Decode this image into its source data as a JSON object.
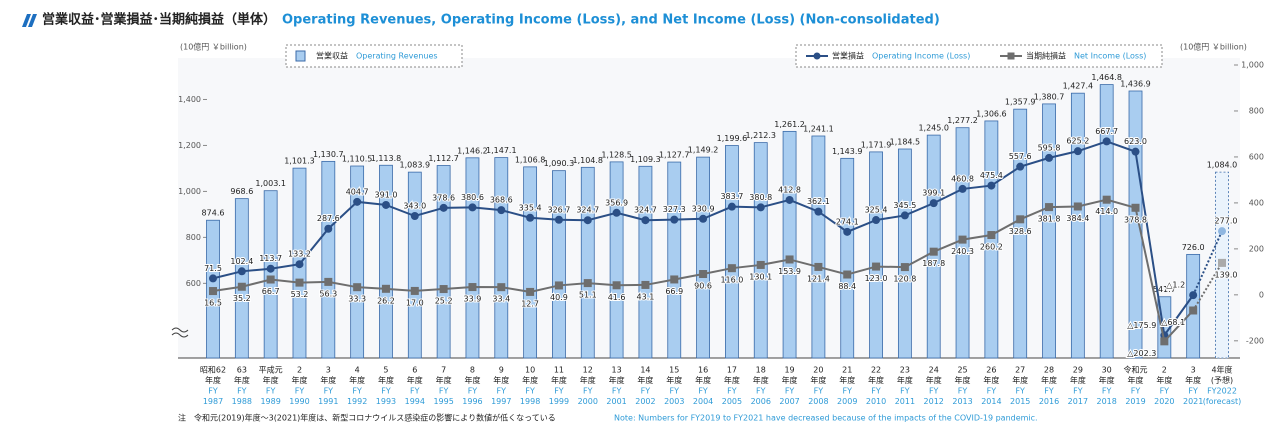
{
  "chart_data": {
    "type": "bar-line",
    "title": "営業収益･営業損益･当期純損益（単体）",
    "title_en": "Operating Revenues, Operating Income (Loss), and Net Income (Loss) (Non-consolidated)",
    "y_label": "(10億円 ￥billion)",
    "y2_label": "(10億円 ￥billion)",
    "note": "注　令和元(2019)年度～3(2021)年度は、新型コロナウイルス感染症の影響により数値が低くなっている",
    "note_en": "Note: Numbers for FY2019 to FY2021 have decreased because of the impacts of the COVID-19 pandemic.",
    "categories": [
      [
        "昭和62",
        "年度",
        "FY",
        "1987"
      ],
      [
        "63",
        "年度",
        "FY",
        "1988"
      ],
      [
        "平成元",
        "年度",
        "FY",
        "1989"
      ],
      [
        "2",
        "年度",
        "FY",
        "1990"
      ],
      [
        "3",
        "年度",
        "FY",
        "1991"
      ],
      [
        "4",
        "年度",
        "FY",
        "1992"
      ],
      [
        "5",
        "年度",
        "FY",
        "1993"
      ],
      [
        "6",
        "年度",
        "FY",
        "1994"
      ],
      [
        "7",
        "年度",
        "FY",
        "1995"
      ],
      [
        "8",
        "年度",
        "FY",
        "1996"
      ],
      [
        "9",
        "年度",
        "FY",
        "1997"
      ],
      [
        "10",
        "年度",
        "FY",
        "1998"
      ],
      [
        "11",
        "年度",
        "FY",
        "1999"
      ],
      [
        "12",
        "年度",
        "FY",
        "2000"
      ],
      [
        "13",
        "年度",
        "FY",
        "2001"
      ],
      [
        "14",
        "年度",
        "FY",
        "2002"
      ],
      [
        "15",
        "年度",
        "FY",
        "2003"
      ],
      [
        "16",
        "年度",
        "FY",
        "2004"
      ],
      [
        "17",
        "年度",
        "FY",
        "2005"
      ],
      [
        "18",
        "年度",
        "FY",
        "2006"
      ],
      [
        "19",
        "年度",
        "FY",
        "2007"
      ],
      [
        "20",
        "年度",
        "FY",
        "2008"
      ],
      [
        "21",
        "年度",
        "FY",
        "2009"
      ],
      [
        "22",
        "年度",
        "FY",
        "2010"
      ],
      [
        "23",
        "年度",
        "FY",
        "2011"
      ],
      [
        "24",
        "年度",
        "FY",
        "2012"
      ],
      [
        "25",
        "年度",
        "FY",
        "2013"
      ],
      [
        "26",
        "年度",
        "FY",
        "2014"
      ],
      [
        "27",
        "年度",
        "FY",
        "2015"
      ],
      [
        "28",
        "年度",
        "FY",
        "2016"
      ],
      [
        "29",
        "年度",
        "FY",
        "2017"
      ],
      [
        "30",
        "年度",
        "FY",
        "2018"
      ],
      [
        "令和元",
        "年度",
        "FY",
        "2019"
      ],
      [
        "2",
        "年度",
        "FY",
        "2020"
      ],
      [
        "3",
        "年度",
        "FY",
        "2021"
      ],
      [
        "4年度",
        "(予想)",
        "FY2022",
        "(forecast)"
      ]
    ],
    "series": [
      {
        "name": "営業収益",
        "name_en": "Operating Revenues",
        "color": "#a9cdf0",
        "axis": "y",
        "style": "bar",
        "values": [
          874.6,
          968.6,
          1003.1,
          1101.3,
          1130.7,
          1110.5,
          1113.8,
          1083.9,
          1112.7,
          1146.2,
          1147.1,
          1106.8,
          1090.3,
          1104.8,
          1128.5,
          1109.3,
          1127.7,
          1149.2,
          1199.6,
          1212.3,
          1261.2,
          1241.1,
          1143.9,
          1171.9,
          1184.5,
          1245.0,
          1277.2,
          1306.6,
          1357.9,
          1380.7,
          1427.4,
          1464.8,
          1436.9,
          541.7,
          726.0,
          1084.0
        ],
        "value_labels": [
          "874.6",
          "968.6",
          "1,003.1",
          "1,101.3",
          "1,130.7",
          "1,110.5",
          "1,113.8",
          "1,083.9",
          "1,112.7",
          "1,146.2",
          "1,147.1",
          "1,106.8",
          "1,090.3",
          "1,104.8",
          "1,128.5",
          "1,109.3",
          "1,127.7",
          "1,149.2",
          "1,199.6",
          "1,212.3",
          "1,261.2",
          "1,241.1",
          "1,143.9",
          "1,171.9",
          "1,184.5",
          "1,245.0",
          "1,277.2",
          "1,306.6",
          "1,357.9",
          "1,380.7",
          "1,427.4",
          "1,464.8",
          "1,436.9",
          "541.7",
          "726.0",
          "1,084.0"
        ]
      },
      {
        "name": "営業損益",
        "name_en": "Operating Income (Loss)",
        "color": "#2b4f86",
        "axis": "y2",
        "style": "line-circle",
        "values": [
          71.5,
          102.4,
          113.7,
          133.2,
          287.6,
          404.7,
          391.0,
          343.0,
          378.6,
          380.6,
          368.6,
          335.4,
          326.7,
          324.7,
          356.9,
          324.7,
          327.3,
          330.9,
          383.7,
          380.8,
          412.8,
          362.1,
          274.1,
          325.4,
          345.5,
          399.1,
          460.8,
          475.4,
          557.6,
          595.8,
          625.2,
          667.7,
          623.0,
          -175.9,
          -1.2,
          277.0
        ],
        "value_labels": [
          "71.5",
          "102.4",
          "113.7",
          "133.2",
          "287.6",
          "404.7",
          "391.0",
          "343.0",
          "378.6",
          "380.6",
          "368.6",
          "335.4",
          "326.7",
          "324.7",
          "356.9",
          "324.7",
          "327.3",
          "330.9",
          "383.7",
          "380.8",
          "412.8",
          "362.1",
          "274.1",
          "325.4",
          "345.5",
          "399.1",
          "460.8",
          "475.4",
          "557.6",
          "595.8",
          "625.2",
          "667.7",
          "623.0",
          "△175.9",
          "△1.2",
          "277.0"
        ]
      },
      {
        "name": "当期純損益",
        "name_en": "Net Income (Loss)",
        "color": "#6e6e6e",
        "axis": "y2",
        "style": "line-square",
        "values": [
          16.5,
          35.2,
          66.7,
          53.2,
          56.3,
          33.3,
          26.2,
          17.0,
          25.2,
          33.9,
          33.4,
          12.7,
          40.9,
          51.1,
          41.6,
          43.1,
          66.9,
          90.6,
          116.0,
          130.1,
          153.9,
          121.4,
          88.4,
          123.0,
          120.8,
          187.8,
          240.3,
          260.2,
          328.6,
          381.8,
          384.4,
          414.0,
          378.8,
          -202.3,
          -68.1,
          139.0
        ],
        "value_labels": [
          "16.5",
          "35.2",
          "66.7",
          "53.2",
          "56.3",
          "33.3",
          "26.2",
          "17.0",
          "25.2",
          "33.9",
          "33.4",
          "12.7",
          "40.9",
          "51.1",
          "41.6",
          "43.1",
          "66.9",
          "90.6",
          "116.0",
          "130.1",
          "153.9",
          "121.4",
          "88.4",
          "123.0",
          "120.8",
          "187.8",
          "240.3",
          "260.2",
          "328.6",
          "381.8",
          "384.4",
          "414.0",
          "378.8",
          "△202.3",
          "△68.1",
          "139.0"
        ]
      }
    ],
    "forecast_last": true,
    "ylim": [
      310,
      1550
    ],
    "yticks": [
      600,
      800,
      {
        "value": 1000,
        "label": "1,000"
      },
      {
        "value": 1200,
        "label": "1,200"
      },
      {
        "value": 1400,
        "label": "1,400"
      }
    ],
    "y2lim": [
      -240,
      1000
    ],
    "y2ticks": [
      {
        "value": 1000,
        "label": "1,000"
      },
      800,
      600,
      400,
      200,
      0,
      -200
    ]
  }
}
